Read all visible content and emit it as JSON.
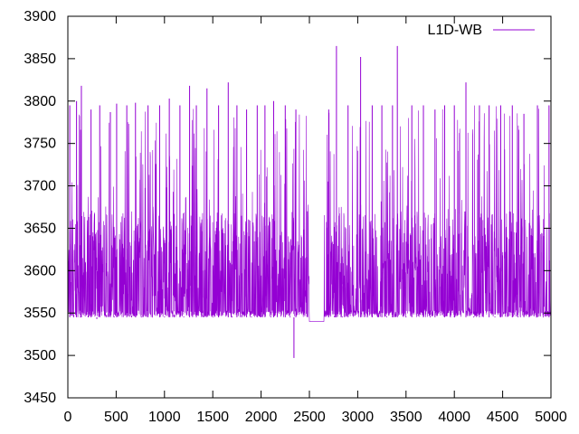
{
  "chart_data": {
    "type": "line",
    "title": "",
    "xlabel": "",
    "ylabel": "",
    "xlim": [
      0,
      5000
    ],
    "ylim": [
      3450,
      3900
    ],
    "x_ticks": [
      0,
      500,
      1000,
      1500,
      2000,
      2500,
      3000,
      3500,
      4000,
      4500,
      5000
    ],
    "y_ticks": [
      3450,
      3500,
      3550,
      3600,
      3650,
      3700,
      3750,
      3800,
      3850,
      3900
    ],
    "grid": false,
    "legend_position": "top-right",
    "series": [
      {
        "name": "L1D-WB",
        "color": "#9400d3",
        "baseline": 3545,
        "band_high": 3670,
        "gap_ranges": [
          [
            2500,
            2650
          ]
        ],
        "gap_value": 3540,
        "points": [
          [
            0,
            3545
          ],
          [
            20,
            3795
          ],
          [
            60,
            3548
          ],
          [
            90,
            3800
          ],
          [
            130,
            3546
          ],
          [
            140,
            3818
          ],
          [
            210,
            3547
          ],
          [
            240,
            3790
          ],
          [
            300,
            3543
          ],
          [
            330,
            3795
          ],
          [
            400,
            3548
          ],
          [
            440,
            3787
          ],
          [
            480,
            3546
          ],
          [
            505,
            3797
          ],
          [
            570,
            3545
          ],
          [
            610,
            3795
          ],
          [
            660,
            3547
          ],
          [
            700,
            3798
          ],
          [
            760,
            3546
          ],
          [
            830,
            3795
          ],
          [
            880,
            3545
          ],
          [
            950,
            3795
          ],
          [
            1000,
            3546
          ],
          [
            1050,
            3803
          ],
          [
            1100,
            3548
          ],
          [
            1160,
            3795
          ],
          [
            1200,
            3546
          ],
          [
            1260,
            3818
          ],
          [
            1300,
            3545
          ],
          [
            1330,
            3795
          ],
          [
            1400,
            3547
          ],
          [
            1440,
            3815
          ],
          [
            1500,
            3546
          ],
          [
            1560,
            3795
          ],
          [
            1610,
            3545
          ],
          [
            1660,
            3822
          ],
          [
            1700,
            3546
          ],
          [
            1750,
            3795
          ],
          [
            1800,
            3548
          ],
          [
            1850,
            3790
          ],
          [
            1900,
            3546
          ],
          [
            1960,
            3795
          ],
          [
            2000,
            3547
          ],
          [
            2040,
            3795
          ],
          [
            2100,
            3546
          ],
          [
            2130,
            3800
          ],
          [
            2200,
            3545
          ],
          [
            2250,
            3795
          ],
          [
            2300,
            3546
          ],
          [
            2340,
            3497
          ],
          [
            2360,
            3790
          ],
          [
            2420,
            3545
          ],
          [
            2480,
            3670
          ],
          [
            2680,
            3545
          ],
          [
            2700,
            3790
          ],
          [
            2760,
            3547
          ],
          [
            2780,
            3865
          ],
          [
            2840,
            3546
          ],
          [
            2900,
            3795
          ],
          [
            2950,
            3545
          ],
          [
            3030,
            3852
          ],
          [
            3100,
            3546
          ],
          [
            3150,
            3795
          ],
          [
            3200,
            3545
          ],
          [
            3250,
            3795
          ],
          [
            3300,
            3546
          ],
          [
            3360,
            3795
          ],
          [
            3400,
            3545
          ],
          [
            3410,
            3865
          ],
          [
            3500,
            3546
          ],
          [
            3560,
            3795
          ],
          [
            3600,
            3545
          ],
          [
            3680,
            3795
          ],
          [
            3750,
            3546
          ],
          [
            3800,
            3790
          ],
          [
            3850,
            3545
          ],
          [
            3900,
            3795
          ],
          [
            3960,
            3546
          ],
          [
            4000,
            3795
          ],
          [
            4060,
            3545
          ],
          [
            4120,
            3822
          ],
          [
            4200,
            3546
          ],
          [
            4260,
            3795
          ],
          [
            4300,
            3545
          ],
          [
            4360,
            3795
          ],
          [
            4420,
            3546
          ],
          [
            4480,
            3795
          ],
          [
            4550,
            3545
          ],
          [
            4600,
            3795
          ],
          [
            4660,
            3546
          ],
          [
            4720,
            3785
          ],
          [
            4800,
            3545
          ],
          [
            4860,
            3795
          ],
          [
            4920,
            3546
          ],
          [
            4980,
            3795
          ],
          [
            5000,
            3545
          ]
        ]
      }
    ]
  }
}
